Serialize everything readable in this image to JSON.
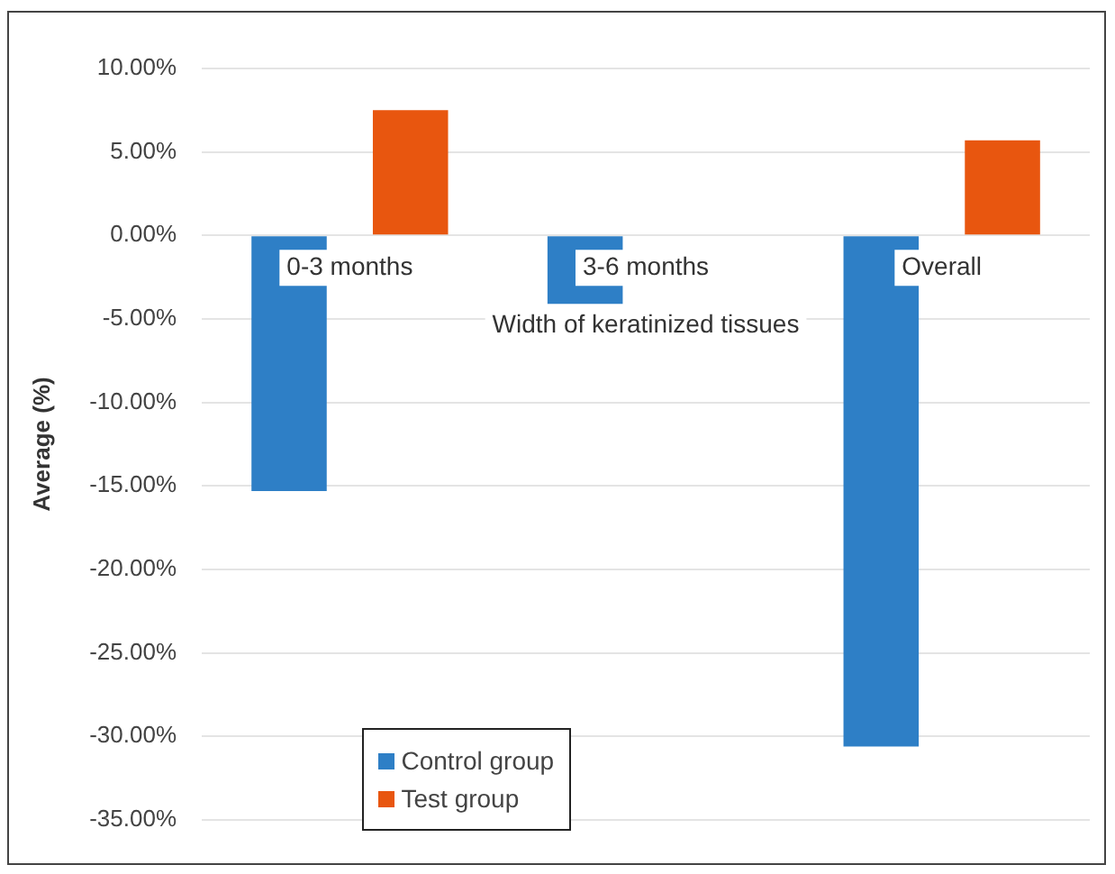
{
  "chart_data": {
    "type": "bar",
    "xlabel": "Width of keratinized tissues",
    "ylabel": "Average (%)",
    "categories": [
      "0-3 months",
      "3-6 months",
      "Overall"
    ],
    "series": [
      {
        "name": "Control group",
        "color": "#2e7fc6",
        "values": [
          -15.3,
          -4.1,
          -30.6
        ]
      },
      {
        "name": "Test group",
        "color": "#e8560f",
        "values": [
          7.5,
          null,
          5.7
        ]
      }
    ],
    "ylim": [
      -35,
      10
    ],
    "yticks": [
      {
        "value": 10,
        "label": "10.00%"
      },
      {
        "value": 5,
        "label": "5.00%"
      },
      {
        "value": 0,
        "label": "0.00%"
      },
      {
        "value": -5,
        "label": "-5.00%"
      },
      {
        "value": -10,
        "label": "-10.00%"
      },
      {
        "value": -15,
        "label": "-15.00%"
      },
      {
        "value": -20,
        "label": "-20.00%"
      },
      {
        "value": -25,
        "label": "-25.00%"
      },
      {
        "value": -30,
        "label": "-30.00%"
      },
      {
        "value": -35,
        "label": "-35.00%"
      }
    ],
    "grid": "y",
    "legend": "bottom left"
  }
}
